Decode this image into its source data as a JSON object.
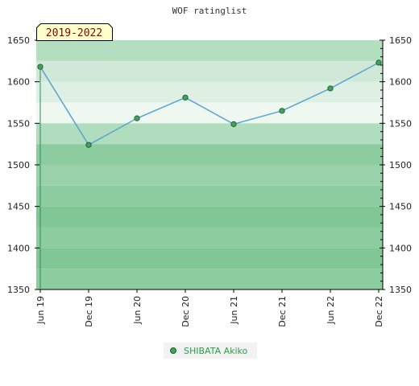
{
  "chart_data": {
    "type": "line",
    "title": "WOF ratinglist",
    "period_label": "2019-2022",
    "categories": [
      "Jun 19",
      "Dec 19",
      "Jun 20",
      "Dec 20",
      "Jun 21",
      "Dec 21",
      "Jun 22",
      "Dec 22"
    ],
    "series": [
      {
        "name": "SHIBATA Akiko",
        "values": [
          1618,
          1524,
          1556,
          1581,
          1549,
          1565,
          1592,
          1623
        ]
      }
    ],
    "ylim": [
      1350,
      1650
    ],
    "yticks": [
      "1350",
      "1400",
      "1450",
      "1500",
      "1550",
      "1600",
      "1650"
    ],
    "grid": false,
    "legend_position": "bottom"
  },
  "colors": {
    "line": "#5ba3d0",
    "marker": "#3ea65a",
    "legend_text": "#2e9e48"
  }
}
